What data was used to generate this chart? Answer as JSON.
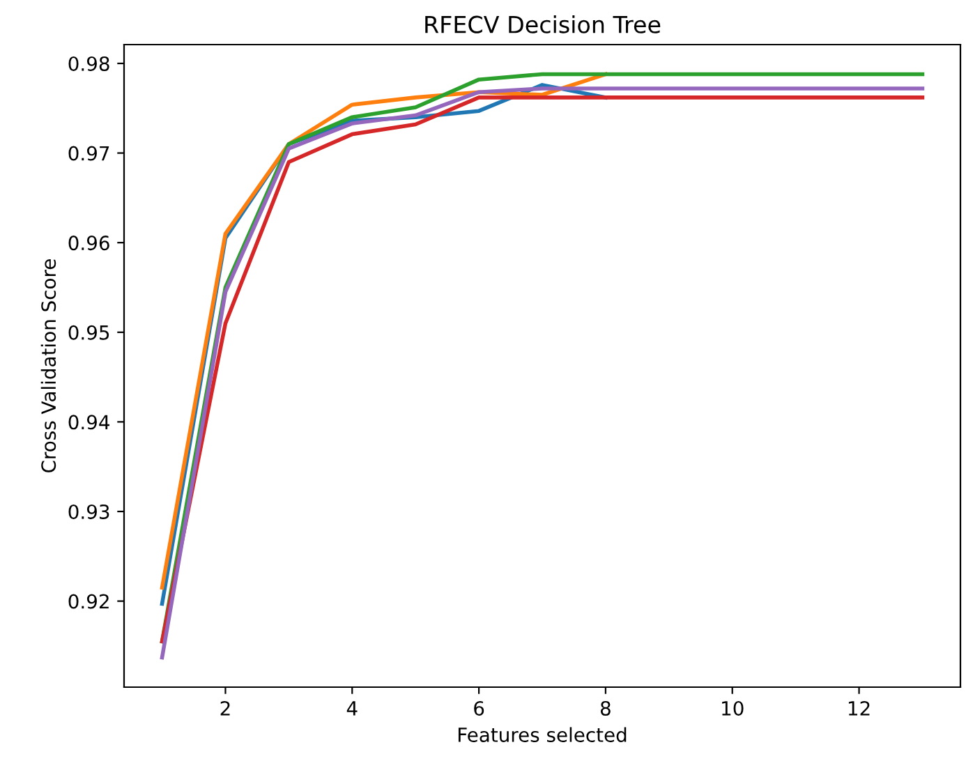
{
  "chart_data": {
    "type": "line",
    "title": "RFECV Decision Tree",
    "xlabel": "Features selected",
    "ylabel": "Cross Validation Score",
    "x": [
      1,
      2,
      3,
      4,
      5,
      6,
      7,
      8,
      9,
      10,
      11,
      12,
      13
    ],
    "series": [
      {
        "color": "#1f77b4",
        "values": [
          0.9197,
          0.9605,
          0.971,
          0.9736,
          0.974,
          0.9747,
          0.9776,
          0.9762,
          null,
          null,
          null,
          null,
          null
        ]
      },
      {
        "color": "#ff7f0e",
        "values": [
          0.9215,
          0.961,
          0.971,
          0.9754,
          0.9762,
          0.9768,
          0.9765,
          0.9788,
          null,
          null,
          null,
          null,
          null
        ]
      },
      {
        "color": "#2ca02c",
        "values": [
          0.9155,
          0.955,
          0.971,
          0.974,
          0.9751,
          0.9782,
          0.9788,
          0.9788,
          0.9788,
          0.9788,
          0.9788,
          0.9788,
          0.9788
        ]
      },
      {
        "color": "#d62728",
        "values": [
          0.9155,
          0.951,
          0.969,
          0.9721,
          0.9732,
          0.9762,
          0.9762,
          0.9762,
          0.9762,
          0.9762,
          0.9762,
          0.9762,
          0.9762
        ]
      },
      {
        "color": "#9467bd",
        "values": [
          0.9137,
          0.9545,
          0.9705,
          0.9733,
          0.9742,
          0.9768,
          0.9772,
          0.9772,
          0.9772,
          0.9772,
          0.9772,
          0.9772,
          0.9772
        ]
      }
    ],
    "xlim": [
      0.4,
      13.6
    ],
    "ylim": [
      0.9104,
      0.9821
    ],
    "xticks": [
      2,
      4,
      6,
      8,
      10,
      12
    ],
    "yticks": [
      0.92,
      0.93,
      0.94,
      0.95,
      0.96,
      0.97,
      0.98
    ],
    "grid": false,
    "marker": "none",
    "line_style": "solid"
  }
}
